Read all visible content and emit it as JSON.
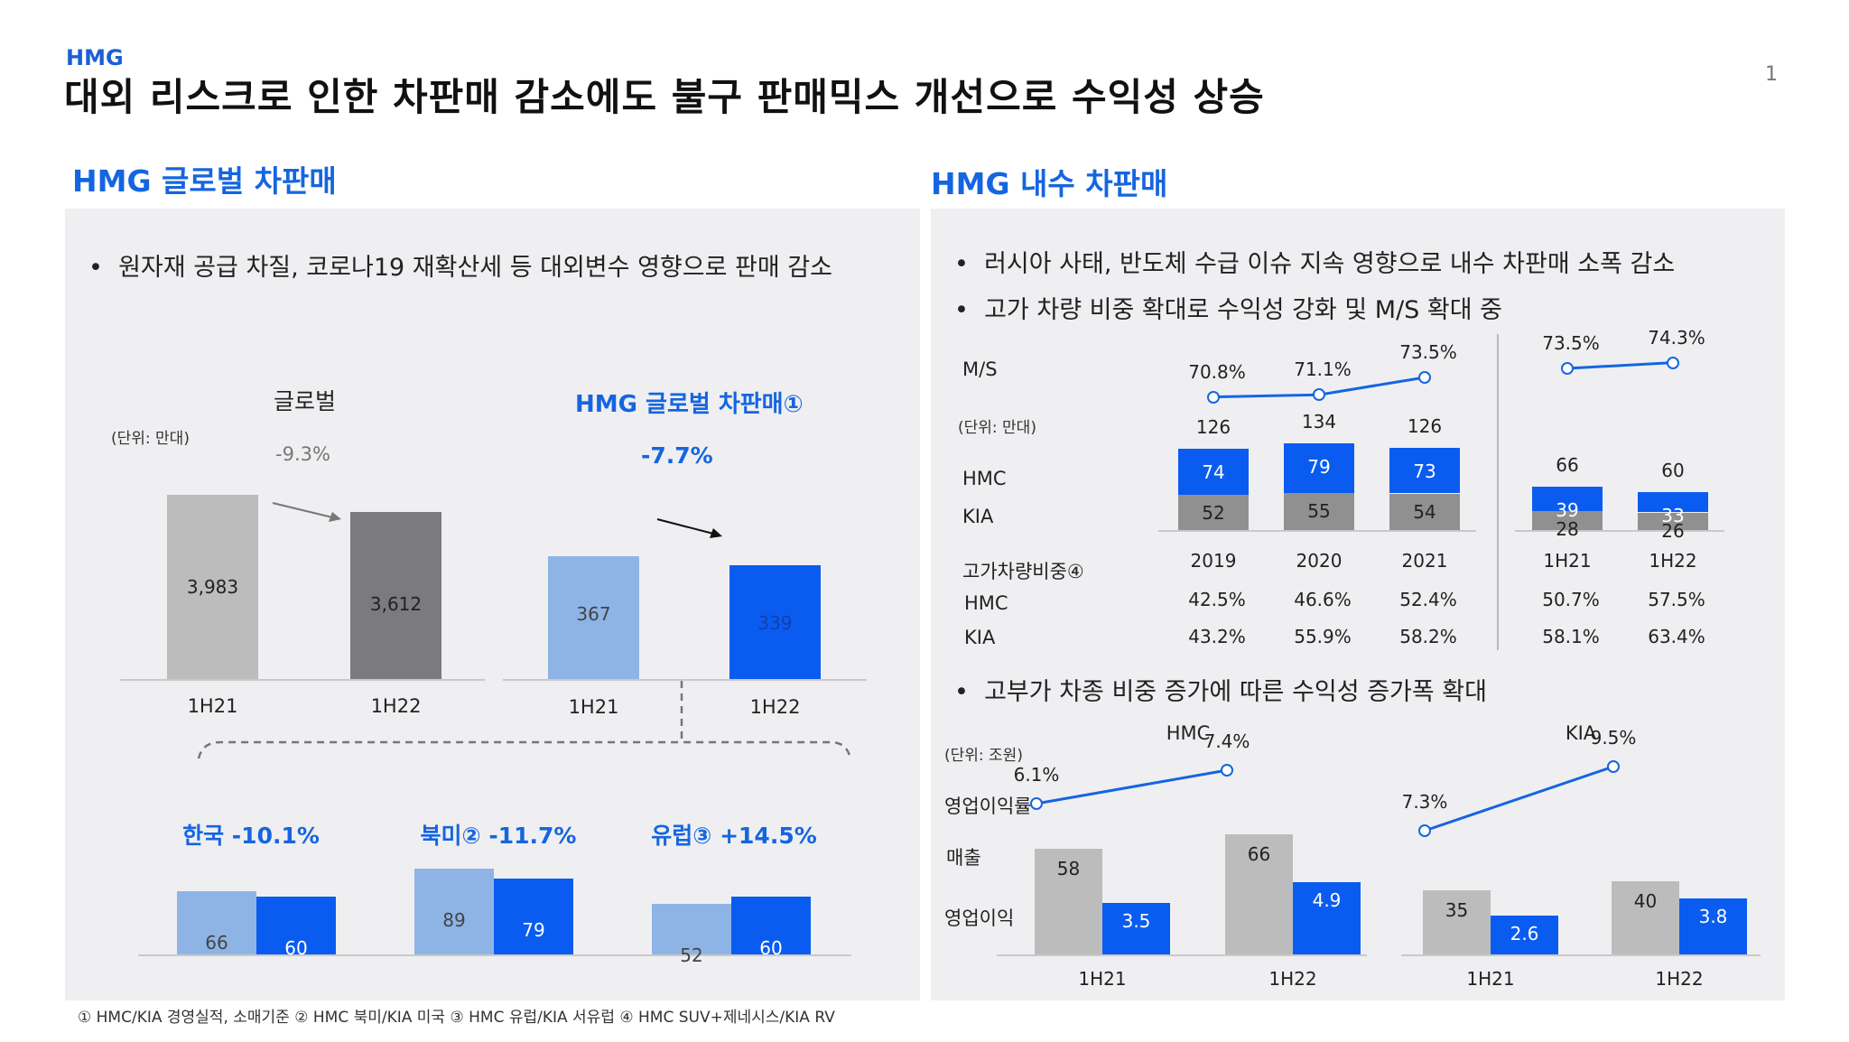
{
  "header": {
    "tag": "HMG",
    "title": "대외 리스크로 인한 차판매 감소에도 불구 판매믹스 개선으로 수익성 상승",
    "page_number": "1"
  },
  "left": {
    "section_title": "HMG 글로벌 차판매",
    "bullet": "원자재 공급 차질, 코로나19 재확산세 등 대외변수 영향으로 판매 감소",
    "unit": "(단위: 만대)",
    "global": {
      "label": "글로벌",
      "change": "-9.3%",
      "categories": [
        "1H21",
        "1H22"
      ],
      "values": [
        3983,
        3612
      ],
      "value_labels": [
        "3,983",
        "3,612"
      ]
    },
    "hmg": {
      "label": "HMG 글로벌 차판매①",
      "change": "-7.7%",
      "categories": [
        "1H21",
        "1H22"
      ],
      "values": [
        367,
        339
      ],
      "value_labels": [
        "367",
        "339"
      ]
    },
    "regions": [
      {
        "name": "한국",
        "change": "-10.1%",
        "values": [
          66,
          60
        ],
        "value_labels": [
          "66",
          "60"
        ]
      },
      {
        "name": "북미②",
        "change": "-11.7%",
        "values": [
          89,
          79
        ],
        "value_labels": [
          "89",
          "79"
        ]
      },
      {
        "name": "유럽③",
        "change": "+14.5%",
        "values": [
          52,
          60
        ],
        "value_labels": [
          "52",
          "60"
        ]
      }
    ]
  },
  "right": {
    "section_title": "HMG 내수 차판매",
    "bullets": [
      "러시아 사태, 반도체 수급 이슈 지속 영향으로 내수 차판매 소폭 감소",
      "고가 차량 비중 확대로 수익성 강화 및 M/S 확대 중"
    ],
    "row_labels": {
      "ms": "M/S",
      "unit": "(단위: 만대)",
      "hmc": "HMC",
      "kia": "KIA",
      "premium": "고가차량비중④",
      "premium_hmc": "HMC",
      "premium_kia": "KIA"
    },
    "annual": {
      "categories": [
        "2019",
        "2020",
        "2021"
      ],
      "ms": [
        "70.8%",
        "71.1%",
        "73.5%"
      ],
      "ms_values": [
        70.8,
        71.1,
        73.5
      ],
      "totals": [
        "126",
        "134",
        "126"
      ],
      "hmc": [
        74,
        79,
        73
      ],
      "kia": [
        52,
        55,
        54
      ],
      "premium_hmc": [
        "42.5%",
        "46.6%",
        "52.4%"
      ],
      "premium_kia": [
        "43.2%",
        "55.9%",
        "58.2%"
      ]
    },
    "half": {
      "categories": [
        "1H21",
        "1H22"
      ],
      "ms": [
        "73.5%",
        "74.3%"
      ],
      "ms_values": [
        73.5,
        74.3
      ],
      "totals": [
        "66",
        "60"
      ],
      "hmc": [
        39,
        33
      ],
      "kia": [
        28,
        26
      ],
      "premium_hmc": [
        "50.7%",
        "57.5%"
      ],
      "premium_kia": [
        "58.1%",
        "63.4%"
      ]
    },
    "bullet3": "고부가 차종 비중 증가에 따른 수익성 증가폭 확대",
    "profit_unit": "(단위: 조원)",
    "profit_labels": {
      "margin": "영업이익률",
      "revenue": "매출",
      "op_income": "영업이익"
    },
    "hmc_profit": {
      "name": "HMC",
      "categories": [
        "1H21",
        "1H22"
      ],
      "margin": [
        "6.1%",
        "7.4%"
      ],
      "margin_values": [
        6.1,
        7.4
      ],
      "revenue": [
        58,
        66
      ],
      "op_income": [
        3.5,
        4.9
      ]
    },
    "kia_profit": {
      "name": "KIA",
      "categories": [
        "1H21",
        "1H22"
      ],
      "margin": [
        "7.3%",
        "9.5%"
      ],
      "margin_values": [
        7.3,
        9.5
      ],
      "revenue": [
        35,
        40
      ],
      "op_income": [
        2.6,
        3.8
      ]
    }
  },
  "footnote": "① HMC/KIA 경영실적, 소매기준 ② HMC 북미/KIA 미국 ③ HMC 유럽/KIA 서유럽 ④ HMC SUV+제네시스/KIA RV",
  "colors": {
    "accent_blue": "#0a5cf0",
    "title_blue": "#1565e0",
    "light_blue": "#8eb4e6",
    "gray_light": "#bdbcbd",
    "gray_dark": "#7b7a7c",
    "panel": "#efeff1"
  }
}
